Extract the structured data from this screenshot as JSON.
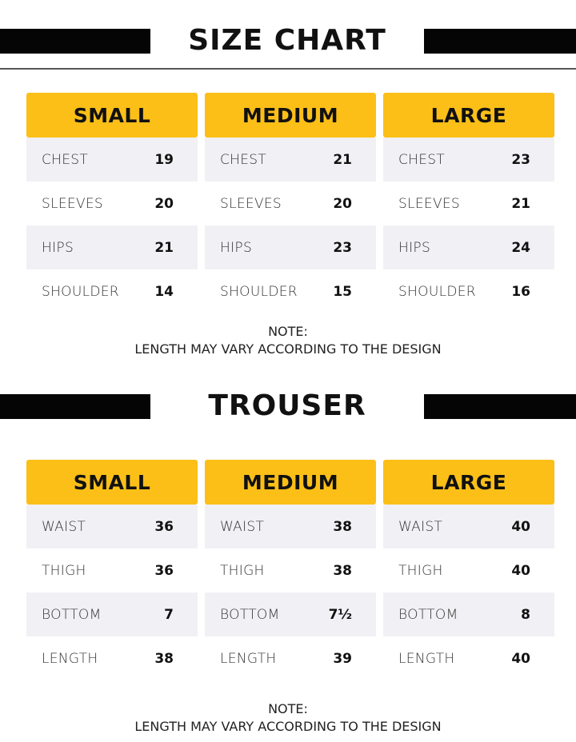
{
  "size_chart": {
    "title": "SIZE CHART",
    "columns": [
      {
        "size": "SMALL",
        "rows": [
          {
            "label": "CHEST",
            "value": "19"
          },
          {
            "label": "SLEEVES",
            "value": "20"
          },
          {
            "label": "HIPS",
            "value": "21"
          },
          {
            "label": "SHOULDER",
            "value": "14"
          }
        ]
      },
      {
        "size": "MEDIUM",
        "rows": [
          {
            "label": "CHEST",
            "value": "21"
          },
          {
            "label": "SLEEVES",
            "value": "20"
          },
          {
            "label": "HIPS",
            "value": "23"
          },
          {
            "label": "SHOULDER",
            "value": "15"
          }
        ]
      },
      {
        "size": "LARGE",
        "rows": [
          {
            "label": "CHEST",
            "value": "23"
          },
          {
            "label": "SLEEVES",
            "value": "21"
          },
          {
            "label": "HIPS",
            "value": "24"
          },
          {
            "label": "SHOULDER",
            "value": "16"
          }
        ]
      }
    ],
    "note_title": "NOTE:",
    "note_text": "LENGTH MAY VARY ACCORDING TO THE DESIGN"
  },
  "trouser": {
    "title": "TROUSER",
    "columns": [
      {
        "size": "SMALL",
        "rows": [
          {
            "label": "WAIST",
            "value": "36"
          },
          {
            "label": "THIGH",
            "value": "36"
          },
          {
            "label": "BOTTOM",
            "value": "7"
          },
          {
            "label": "LENGTH",
            "value": "38"
          }
        ]
      },
      {
        "size": "MEDIUM",
        "rows": [
          {
            "label": "WAIST",
            "value": "38"
          },
          {
            "label": "THIGH",
            "value": "38"
          },
          {
            "label": "BOTTOM",
            "value": "7½"
          },
          {
            "label": "LENGTH",
            "value": "39"
          }
        ]
      },
      {
        "size": "LARGE",
        "rows": [
          {
            "label": "WAIST",
            "value": "40"
          },
          {
            "label": "THIGH",
            "value": "40"
          },
          {
            "label": "BOTTOM",
            "value": "8"
          },
          {
            "label": "LENGTH",
            "value": "40"
          }
        ]
      }
    ],
    "note_title": "NOTE:",
    "note_text": "LENGTH MAY VARY ACCORDING TO THE DESIGN"
  },
  "colors": {
    "header_yellow": "#fbbf17",
    "bar_black": "#050505",
    "row_gray": "#f1f1f5"
  }
}
